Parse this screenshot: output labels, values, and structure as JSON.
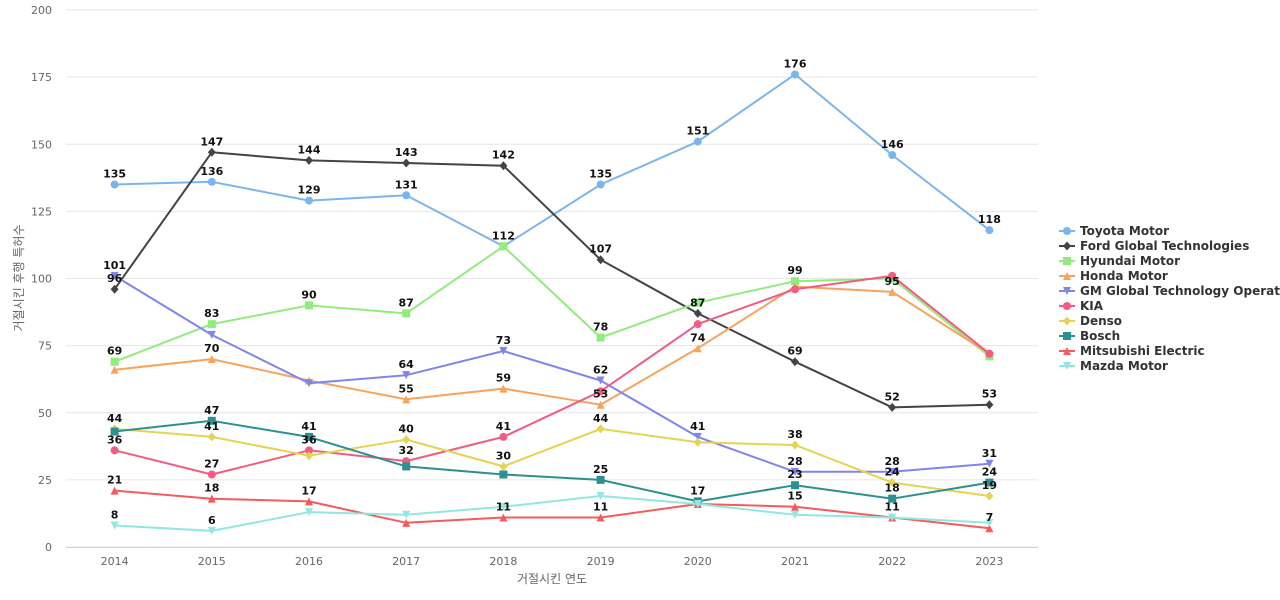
{
  "chart_data": {
    "type": "line",
    "xlabel": "거절시킨 연도",
    "ylabel": "거절시킨 후행 특허수",
    "ylim": [
      0,
      200
    ],
    "yticks": [
      0,
      25,
      50,
      75,
      100,
      125,
      150,
      175,
      200
    ],
    "grid": true,
    "legend_position": "right",
    "categories": [
      "2014",
      "2015",
      "2016",
      "2017",
      "2018",
      "2019",
      "2020",
      "2021",
      "2022",
      "2023"
    ],
    "series": [
      {
        "name": "Toyota Motor",
        "legend_label": "Toyota Motor",
        "color": "#7cb5ec",
        "marker": "circle",
        "values": [
          135,
          136,
          129,
          131,
          112,
          135,
          151,
          176,
          146,
          118
        ],
        "show_labels": true
      },
      {
        "name": "Ford Global Technologies",
        "legend_label": "Ford Global Technologies",
        "color": "#434348",
        "marker": "diamond",
        "values": [
          96,
          147,
          144,
          143,
          142,
          107,
          87,
          69,
          52,
          53
        ],
        "show_labels": true
      },
      {
        "name": "Hyundai Motor",
        "legend_label": "Hyundai Motor",
        "color": "#90ed7d",
        "marker": "square",
        "values": [
          69,
          83,
          90,
          87,
          112,
          78,
          91,
          99,
          100,
          71
        ],
        "show_labels": [
          true,
          true,
          true,
          true,
          false,
          true,
          false,
          true,
          false,
          false
        ]
      },
      {
        "name": "Honda Motor",
        "legend_label": "Honda Motor",
        "color": "#f7a35c",
        "marker": "triangle",
        "values": [
          66,
          70,
          62,
          55,
          59,
          53,
          74,
          97,
          95,
          72
        ],
        "show_labels": [
          false,
          true,
          false,
          true,
          true,
          true,
          true,
          false,
          true,
          false
        ]
      },
      {
        "name": "GM Global Technology Operations",
        "legend_label": "GM Global Technology Operat...",
        "color": "#8085e9",
        "marker": "triangle-down",
        "values": [
          101,
          79,
          61,
          64,
          73,
          62,
          41,
          28,
          28,
          31
        ],
        "show_labels": [
          true,
          false,
          false,
          true,
          true,
          true,
          true,
          true,
          true,
          true
        ]
      },
      {
        "name": "KIA",
        "legend_label": "KIA",
        "color": "#f15c80",
        "marker": "circle",
        "values": [
          36,
          27,
          36,
          32,
          41,
          58,
          83,
          96,
          101,
          72
        ],
        "show_labels": [
          true,
          true,
          true,
          true,
          true,
          false,
          false,
          false,
          false,
          false
        ]
      },
      {
        "name": "Denso",
        "legend_label": "Denso",
        "color": "#e4d354",
        "marker": "diamond",
        "values": [
          44,
          41,
          34,
          40,
          30,
          44,
          39,
          38,
          24,
          19
        ],
        "show_labels": [
          true,
          true,
          false,
          true,
          true,
          true,
          false,
          true,
          true,
          true
        ]
      },
      {
        "name": "Bosch",
        "legend_label": "Bosch",
        "color": "#2b908f",
        "marker": "square",
        "values": [
          43,
          47,
          41,
          30,
          27,
          25,
          17,
          23,
          18,
          24
        ],
        "show_labels": [
          false,
          true,
          true,
          false,
          false,
          true,
          true,
          true,
          true,
          true
        ]
      },
      {
        "name": "Mitsubishi Electric",
        "legend_label": "Mitsubishi Electric",
        "color": "#f45b5b",
        "marker": "triangle",
        "values": [
          21,
          18,
          17,
          9,
          11,
          11,
          16,
          15,
          11,
          7
        ],
        "show_labels": [
          true,
          true,
          true,
          false,
          true,
          true,
          false,
          true,
          true,
          true
        ]
      },
      {
        "name": "Mazda Motor",
        "legend_label": "Mazda Motor",
        "color": "#91e8e1",
        "marker": "triangle-down",
        "values": [
          8,
          6,
          13,
          12,
          15,
          19,
          16,
          12,
          11,
          9
        ],
        "show_labels": [
          true,
          true,
          false,
          false,
          false,
          false,
          false,
          false,
          false,
          false
        ]
      }
    ]
  }
}
